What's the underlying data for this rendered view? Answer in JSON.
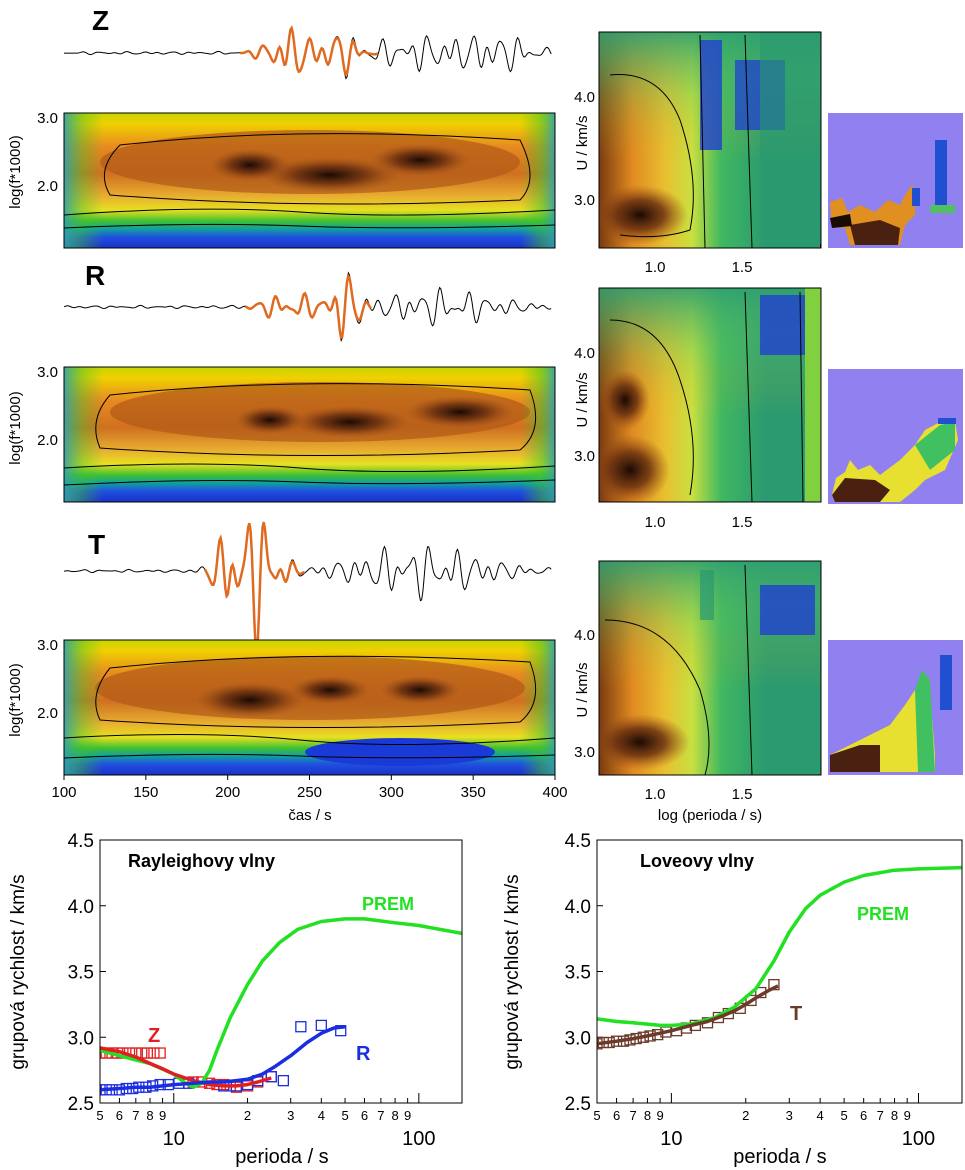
{
  "chart_data": [
    {
      "type": "heatmap",
      "component": "Z",
      "ylabel": "log(f*1000)",
      "yticks": [
        "2.0",
        "3.0"
      ],
      "xlabel": "čas / s",
      "xticks": [
        "100",
        "150",
        "200",
        "250",
        "300",
        "350",
        "400"
      ],
      "xlim": [
        100,
        400
      ],
      "ylim": [
        1.3,
        3.0
      ]
    },
    {
      "type": "heatmap",
      "component": "R",
      "ylabel": "log(f*1000)",
      "yticks": [
        "2.0",
        "3.0"
      ],
      "xlim": [
        100,
        400
      ],
      "ylim": [
        1.3,
        3.0
      ]
    },
    {
      "type": "heatmap",
      "component": "T",
      "ylabel": "log(f*1000)",
      "yticks": [
        "2.0",
        "3.0"
      ],
      "xlim": [
        100,
        400
      ],
      "ylim": [
        1.3,
        3.0
      ]
    },
    {
      "type": "heatmap",
      "ylabel": "U / km/s",
      "yticks": [
        "3.0",
        "4.0"
      ],
      "xticks": [
        "1.0",
        "1.5"
      ],
      "xlabel": "log (perioda / s)",
      "xlim": [
        0.7,
        1.9
      ],
      "ylim": [
        2.6,
        4.6
      ]
    },
    {
      "type": "line",
      "title": "Rayleighovy vlny",
      "xlabel": "perioda / s",
      "ylabel": "grupová rychlost / km/s",
      "xscale": "log",
      "xlim": [
        5,
        150
      ],
      "ylim": [
        2.5,
        4.5
      ],
      "yticks": [
        "2.5",
        "3.0",
        "3.5",
        "4.0",
        "4.5"
      ],
      "xtick_major": [
        "10",
        "100"
      ],
      "xtick_minor": [
        "5",
        "6",
        "7",
        "8",
        "9",
        "2",
        "3",
        "4",
        "5",
        "6",
        "7",
        "8",
        "9"
      ],
      "series": [
        {
          "name": "PREM",
          "color": "#22e022",
          "x": [
            5,
            6,
            8,
            10,
            11,
            12,
            13,
            14,
            15,
            17,
            20,
            23,
            27,
            32,
            40,
            50,
            60,
            80,
            100,
            150
          ],
          "y": [
            2.9,
            2.86,
            2.8,
            2.72,
            2.66,
            2.62,
            2.65,
            2.75,
            2.9,
            3.15,
            3.4,
            3.58,
            3.72,
            3.82,
            3.88,
            3.9,
            3.9,
            3.87,
            3.85,
            3.79
          ]
        },
        {
          "name": "Z",
          "color": "#e02020",
          "x": [
            5,
            6,
            7,
            8,
            9,
            10,
            12,
            14,
            16,
            18,
            20,
            22,
            25
          ],
          "y": [
            2.92,
            2.89,
            2.85,
            2.8,
            2.76,
            2.72,
            2.67,
            2.64,
            2.63,
            2.63,
            2.64,
            2.66,
            2.69
          ]
        },
        {
          "name": "R",
          "color": "#1a2ee0",
          "x": [
            5,
            6,
            7,
            8,
            10,
            12,
            14,
            16,
            18,
            20,
            23,
            26,
            30,
            35,
            40,
            45,
            50
          ],
          "y": [
            2.6,
            2.61,
            2.62,
            2.62,
            2.64,
            2.65,
            2.66,
            2.66,
            2.67,
            2.68,
            2.72,
            2.78,
            2.86,
            2.96,
            3.03,
            3.07,
            3.08
          ]
        }
      ],
      "markers": [
        {
          "series": "Z",
          "color": "#e02020",
          "x": [
            5.0,
            5.3,
            5.6,
            5.9,
            6.2,
            6.6,
            7.0,
            7.4,
            7.8,
            8.3,
            8.8,
            12,
            13,
            14,
            15,
            16,
            17,
            18,
            20,
            22,
            25
          ],
          "y": [
            2.88,
            2.88,
            2.88,
            2.88,
            2.88,
            2.88,
            2.88,
            2.88,
            2.88,
            2.88,
            2.88,
            2.66,
            2.66,
            2.65,
            2.64,
            2.64,
            2.63,
            2.62,
            2.63,
            2.66,
            2.7
          ]
        },
        {
          "series": "R",
          "color": "#1a2ee0",
          "x": [
            5.0,
            5.3,
            5.6,
            6.0,
            6.4,
            6.8,
            7.2,
            7.7,
            8.2,
            8.8,
            9.5,
            10.5,
            11.5,
            16,
            18,
            20,
            22,
            25,
            28,
            33,
            40,
            48
          ],
          "y": [
            2.6,
            2.6,
            2.6,
            2.6,
            2.61,
            2.61,
            2.62,
            2.62,
            2.63,
            2.64,
            2.64,
            2.65,
            2.65,
            2.63,
            2.63,
            2.64,
            2.67,
            2.7,
            2.67,
            3.08,
            3.09,
            3.05
          ]
        }
      ],
      "annotations": [
        "PREM",
        "Z",
        "R"
      ]
    },
    {
      "type": "line",
      "title": "Loveovy vlny",
      "xlabel": "perioda / s",
      "ylabel": "grupová rychlost / km/s",
      "xscale": "log",
      "xlim": [
        5,
        150
      ],
      "ylim": [
        2.5,
        4.5
      ],
      "yticks": [
        "2.5",
        "3.0",
        "3.5",
        "4.0",
        "4.5"
      ],
      "xtick_major": [
        "10",
        "100"
      ],
      "xtick_minor": [
        "5",
        "6",
        "7",
        "8",
        "9",
        "2",
        "3",
        "4",
        "5",
        "6",
        "7",
        "8",
        "9"
      ],
      "series": [
        {
          "name": "PREM",
          "color": "#22e022",
          "x": [
            5,
            6,
            7,
            8,
            9,
            10,
            12,
            15,
            18,
            22,
            26,
            30,
            35,
            40,
            50,
            60,
            80,
            100,
            150
          ],
          "y": [
            3.14,
            3.12,
            3.11,
            3.1,
            3.09,
            3.09,
            3.1,
            3.15,
            3.23,
            3.37,
            3.58,
            3.8,
            3.98,
            4.08,
            4.18,
            4.23,
            4.27,
            4.28,
            4.29
          ]
        },
        {
          "name": "T",
          "color": "#6b3a2a",
          "x": [
            5,
            6,
            7,
            8,
            10,
            12,
            14,
            16,
            18,
            20,
            22,
            25,
            27
          ],
          "y": [
            2.95,
            2.97,
            2.99,
            3.01,
            3.05,
            3.09,
            3.12,
            3.16,
            3.2,
            3.25,
            3.3,
            3.36,
            3.39
          ]
        }
      ],
      "markers": [
        {
          "series": "T",
          "color": "#6b3a2a",
          "x": [
            5.0,
            5.3,
            5.6,
            6.0,
            6.4,
            6.8,
            7.2,
            7.7,
            8.2,
            8.8,
            9.5,
            10.5,
            11.5,
            12.5,
            14,
            15.5,
            17,
            19,
            21,
            23,
            26
          ],
          "y": [
            2.95,
            2.96,
            2.96,
            2.97,
            2.97,
            2.98,
            2.99,
            3.0,
            3.01,
            3.02,
            3.04,
            3.05,
            3.07,
            3.09,
            3.11,
            3.15,
            3.18,
            3.22,
            3.28,
            3.34,
            3.4
          ]
        }
      ],
      "annotations": [
        "PREM",
        "T"
      ]
    }
  ],
  "labels": {
    "comp_z": "Z",
    "comp_r": "R",
    "comp_t": "T",
    "prem": "PREM"
  }
}
